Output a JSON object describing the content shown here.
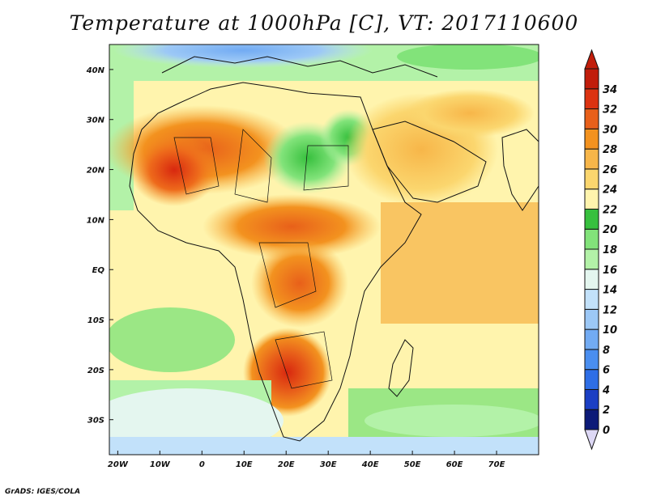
{
  "title": "Temperature at 1000hPa [C], VT: 2017110600",
  "credit": "GrADS: IGES/COLA",
  "map": {
    "lon_range": [
      -22,
      80
    ],
    "lat_range": [
      -37,
      45
    ],
    "x_ticks": [
      {
        "lon": -20,
        "label": "20W"
      },
      {
        "lon": -10,
        "label": "10W"
      },
      {
        "lon": 0,
        "label": "0"
      },
      {
        "lon": 10,
        "label": "10E"
      },
      {
        "lon": 20,
        "label": "20E"
      },
      {
        "lon": 30,
        "label": "30E"
      },
      {
        "lon": 40,
        "label": "40E"
      },
      {
        "lon": 50,
        "label": "50E"
      },
      {
        "lon": 60,
        "label": "60E"
      },
      {
        "lon": 70,
        "label": "70E"
      }
    ],
    "y_ticks": [
      {
        "lat": 40,
        "label": "40N"
      },
      {
        "lat": 30,
        "label": "30N"
      },
      {
        "lat": 20,
        "label": "20N"
      },
      {
        "lat": 10,
        "label": "10N"
      },
      {
        "lat": 0,
        "label": "EQ"
      },
      {
        "lat": -10,
        "label": "10S"
      },
      {
        "lat": -20,
        "label": "20S"
      },
      {
        "lat": -30,
        "label": "30S"
      }
    ]
  },
  "colorbar": {
    "labels": [
      "0",
      "2",
      "4",
      "6",
      "8",
      "10",
      "12",
      "14",
      "16",
      "18",
      "20",
      "22",
      "24",
      "26",
      "28",
      "30",
      "32",
      "34"
    ],
    "colors": [
      "#0c1a78",
      "#1b3fc4",
      "#2e6ee6",
      "#4a8ef0",
      "#72abf3",
      "#9cc8f6",
      "#c2e1fa",
      "#e4f6ef",
      "#b3f2a8",
      "#82e37a",
      "#37c03e",
      "#fff4ad",
      "#fbd66e",
      "#f7b649",
      "#f3921f",
      "#e8601a",
      "#dc3311",
      "#c11d0b"
    ]
  }
}
